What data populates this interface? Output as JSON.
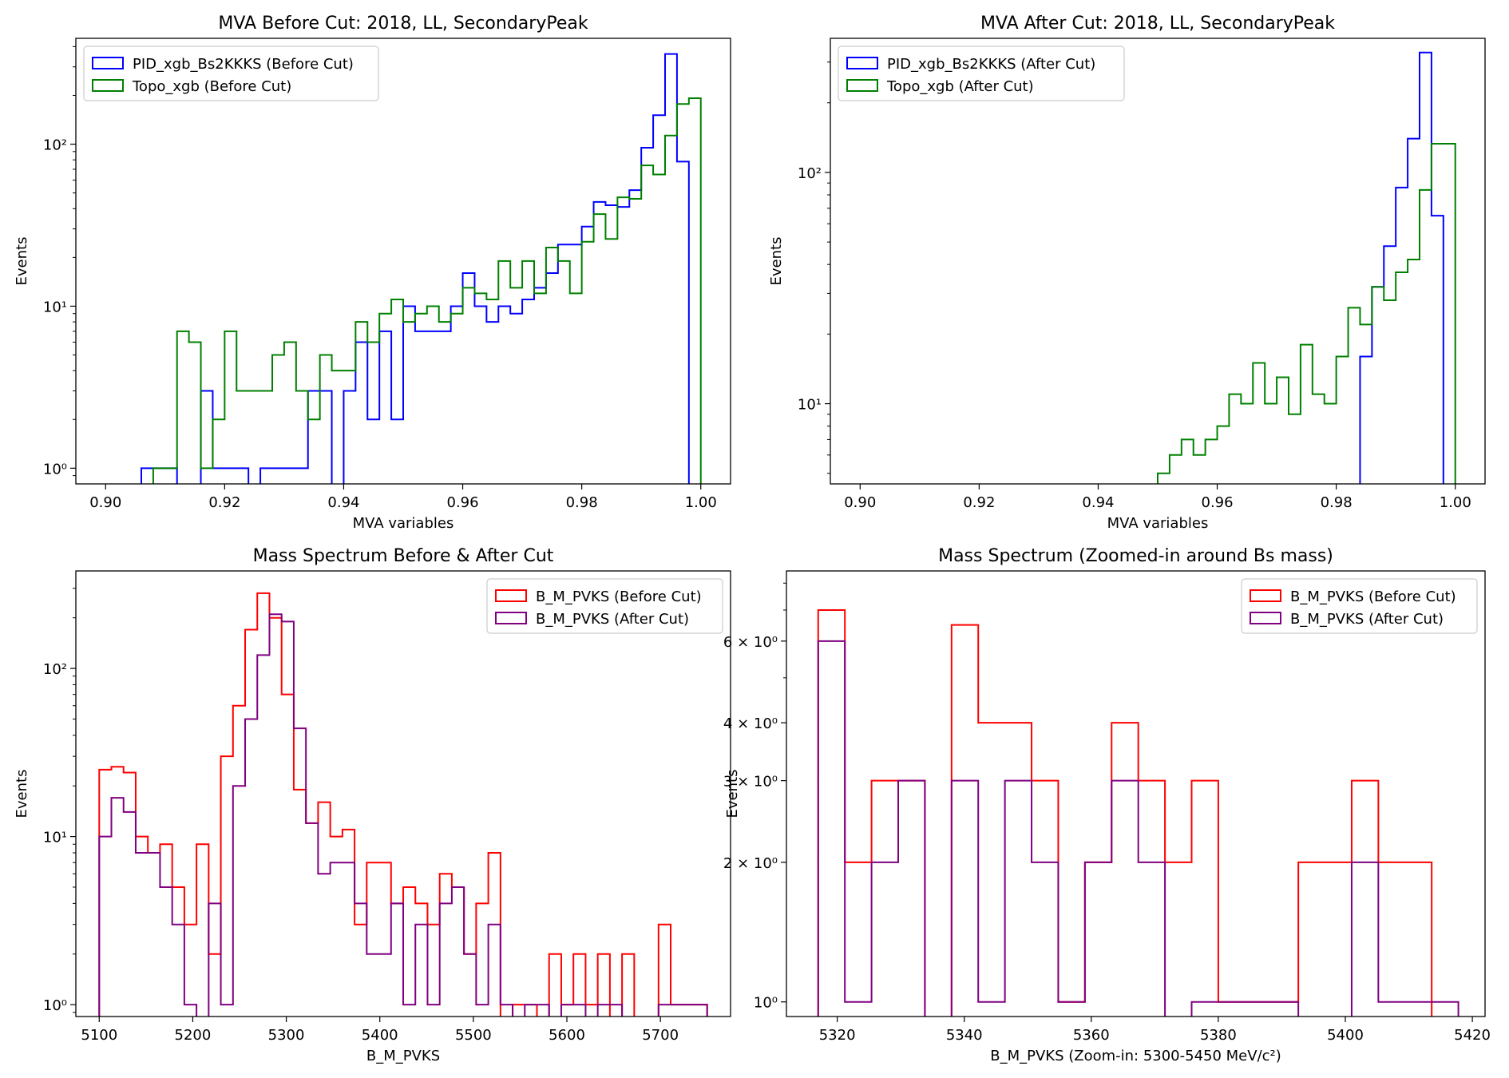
{
  "figure": {
    "colors": {
      "blue": "#0000ff",
      "green": "#008000",
      "red": "#ff0000",
      "purple": "#800080"
    }
  },
  "chart_data": [
    {
      "type": "step-histogram",
      "title": "MVA Before Cut: 2018, LL, SecondaryPeak",
      "xlabel": "MVA variables",
      "ylabel": "Events",
      "xlim": [
        0.895,
        1.005
      ],
      "ylim": [
        0.8,
        450
      ],
      "yscale": "log",
      "xticks": [
        0.9,
        0.92,
        0.94,
        0.96,
        0.98,
        1.0
      ],
      "xtick_labels": [
        "0.90",
        "0.92",
        "0.94",
        "0.96",
        "0.98",
        "1.00"
      ],
      "yticks": [
        1,
        10,
        100
      ],
      "ytick_labels": [
        "10⁰",
        "10¹",
        "10²"
      ],
      "legend_loc": "upper left",
      "bin_edges": [
        0.906,
        0.908,
        0.91,
        0.912,
        0.914,
        0.916,
        0.918,
        0.92,
        0.922,
        0.924,
        0.926,
        0.928,
        0.93,
        0.932,
        0.934,
        0.936,
        0.938,
        0.94,
        0.942,
        0.944,
        0.946,
        0.948,
        0.95,
        0.952,
        0.954,
        0.956,
        0.958,
        0.96,
        0.962,
        0.964,
        0.966,
        0.968,
        0.97,
        0.972,
        0.974,
        0.976,
        0.978,
        0.98,
        0.982,
        0.984,
        0.986,
        0.988,
        0.99,
        0.992,
        0.994,
        0.996,
        0.998,
        1.0
      ],
      "series": [
        {
          "name": "PID_xgb_Bs2KKKS (Before Cut)",
          "color": "#0000ff",
          "values": [
            1,
            1,
            1,
            0,
            0,
            3,
            1,
            1,
            1,
            0,
            1,
            1,
            1,
            1,
            3,
            3,
            0,
            3,
            6,
            2,
            7,
            2,
            10,
            7,
            7,
            7,
            10,
            16,
            10,
            8,
            10,
            9,
            11,
            13,
            16,
            24,
            24,
            31,
            44,
            42,
            41,
            52,
            95,
            151,
            360,
            78,
            0
          ]
        },
        {
          "name": "Topo_xgb (Before Cut)",
          "color": "#008000",
          "values": [
            0,
            1,
            1,
            7,
            6,
            1,
            2,
            7,
            3,
            3,
            3,
            5,
            6,
            3,
            2,
            5,
            4,
            4,
            8,
            6,
            9,
            11,
            8,
            9,
            10,
            8,
            9,
            13,
            12,
            11,
            19,
            13,
            19,
            12,
            23,
            19,
            12,
            25,
            37,
            26,
            47,
            46,
            74,
            65,
            113,
            177,
            192
          ]
        }
      ]
    },
    {
      "type": "step-histogram",
      "title": "MVA After Cut: 2018, LL, SecondaryPeak",
      "xlabel": "MVA variables",
      "ylabel": "Events",
      "xlim": [
        0.895,
        1.005
      ],
      "ylim": [
        4.5,
        380
      ],
      "yscale": "log",
      "xticks": [
        0.9,
        0.92,
        0.94,
        0.96,
        0.98,
        1.0
      ],
      "xtick_labels": [
        "0.90",
        "0.92",
        "0.94",
        "0.96",
        "0.98",
        "1.00"
      ],
      "yticks": [
        10,
        100
      ],
      "ytick_labels": [
        "10¹",
        "10²"
      ],
      "legend_loc": "upper left",
      "bin_edges": [
        0.95,
        0.952,
        0.954,
        0.956,
        0.958,
        0.96,
        0.962,
        0.964,
        0.966,
        0.968,
        0.97,
        0.972,
        0.974,
        0.976,
        0.978,
        0.98,
        0.982,
        0.984,
        0.986,
        0.988,
        0.99,
        0.992,
        0.994,
        0.996,
        0.998,
        1.0
      ],
      "series": [
        {
          "name": "PID_xgb_Bs2KKKS (After Cut)",
          "color": "#0000ff",
          "values": [
            0,
            0,
            0,
            0,
            0,
            0,
            0,
            0,
            0,
            0,
            0,
            0,
            0,
            0,
            0,
            0,
            0,
            16,
            32,
            48,
            86,
            140,
            330,
            65,
            0
          ]
        },
        {
          "name": "Topo_xgb (After Cut)",
          "color": "#008000",
          "values": [
            5,
            6,
            7,
            6,
            7,
            8,
            11,
            10,
            15,
            10,
            13,
            9,
            18,
            11,
            10,
            16,
            26,
            22,
            32,
            28,
            37,
            42,
            84,
            133,
            133
          ]
        }
      ]
    },
    {
      "type": "step-histogram",
      "title": "Mass Spectrum Before & After Cut",
      "xlabel": "B_M_PVKS",
      "ylabel": "Events",
      "xlim": [
        5075,
        5775
      ],
      "ylim": [
        0.85,
        380
      ],
      "yscale": "log",
      "xticks": [
        5100,
        5200,
        5300,
        5400,
        5500,
        5600,
        5700
      ],
      "xtick_labels": [
        "5100",
        "5200",
        "5300",
        "5400",
        "5500",
        "5600",
        "5700"
      ],
      "yticks": [
        1,
        10,
        100
      ],
      "ytick_labels": [
        "10⁰",
        "10¹",
        "10²"
      ],
      "legend_loc": "upper right",
      "bin_edges": [
        5100,
        5113,
        5126,
        5139,
        5152,
        5165,
        5178,
        5191,
        5204,
        5217,
        5230,
        5243,
        5256,
        5269,
        5282,
        5295,
        5308,
        5321,
        5334,
        5347,
        5360,
        5373,
        5386,
        5399,
        5412,
        5425,
        5438,
        5451,
        5464,
        5477,
        5490,
        5503,
        5516,
        5529,
        5542,
        5555,
        5568,
        5581,
        5594,
        5607,
        5620,
        5633,
        5646,
        5659,
        5672,
        5685,
        5698,
        5711,
        5724,
        5737,
        5750
      ],
      "series": [
        {
          "name": "B_M_PVKS (Before Cut)",
          "color": "#ff0000",
          "values": [
            25,
            26,
            24,
            10,
            8,
            9,
            5,
            3,
            9,
            2,
            30,
            60,
            170,
            280,
            200,
            70,
            19,
            12,
            16,
            10,
            11,
            3,
            7,
            7,
            4,
            5,
            4,
            3,
            6,
            5,
            2,
            4,
            8,
            0,
            1,
            1,
            0,
            2,
            1,
            2,
            1,
            2,
            0,
            2,
            0,
            0,
            3,
            1,
            1,
            1
          ]
        },
        {
          "name": "B_M_PVKS (After Cut)",
          "color": "#800080",
          "values": [
            10,
            17,
            14,
            8,
            8,
            5,
            3,
            1,
            0,
            4,
            1,
            20,
            50,
            120,
            210,
            190,
            44,
            12,
            6,
            7,
            7,
            4,
            2,
            2,
            4,
            1,
            3,
            1,
            4,
            5,
            2,
            1,
            3,
            1,
            0,
            1,
            1,
            0,
            1,
            1,
            0,
            1,
            1,
            0,
            0,
            0,
            1,
            1,
            1,
            1
          ]
        }
      ]
    },
    {
      "type": "step-histogram",
      "title": "Mass Spectrum (Zoomed-in around Bs mass)",
      "xlabel": "B_M_PVKS (Zoom-in: 5300-5450 MeV/c²)",
      "ylabel": "Events",
      "xlim": [
        5312,
        5422
      ],
      "ylim": [
        0.93,
        8.5
      ],
      "yscale": "log",
      "xticks": [
        5320,
        5340,
        5360,
        5380,
        5400,
        5420
      ],
      "xtick_labels": [
        "5320",
        "5340",
        "5360",
        "5380",
        "5400",
        "5420"
      ],
      "yticks": [
        1,
        2,
        3,
        4,
        6
      ],
      "ytick_labels": [
        "10⁰",
        "2 × 10⁰",
        "3 × 10⁰",
        "4 × 10⁰",
        "6 × 10⁰"
      ],
      "legend_loc": "upper right",
      "bin_edges": [
        5317.0,
        5321.2,
        5325.4,
        5329.6,
        5333.8,
        5338.0,
        5342.2,
        5346.4,
        5350.6,
        5354.8,
        5359.0,
        5363.2,
        5367.4,
        5371.6,
        5375.8,
        5380.0,
        5384.2,
        5388.4,
        5392.6,
        5396.8,
        5401.0,
        5405.2,
        5409.4,
        5413.6,
        5417.8
      ],
      "series": [
        {
          "name": "B_M_PVKS (Before Cut)",
          "color": "#ff0000",
          "values": [
            7,
            2,
            3,
            3,
            0,
            6.5,
            4,
            4,
            3,
            1,
            2,
            4,
            3,
            2,
            3,
            1,
            1,
            1,
            2,
            2,
            3,
            2,
            2,
            0
          ]
        },
        {
          "name": "B_M_PVKS (After Cut)",
          "color": "#800080",
          "values": [
            6,
            1,
            2,
            3,
            0,
            3,
            1,
            3,
            2,
            1,
            2,
            3,
            2,
            0,
            1,
            1,
            1,
            1,
            0,
            0,
            2,
            1,
            1,
            1
          ]
        }
      ]
    }
  ]
}
